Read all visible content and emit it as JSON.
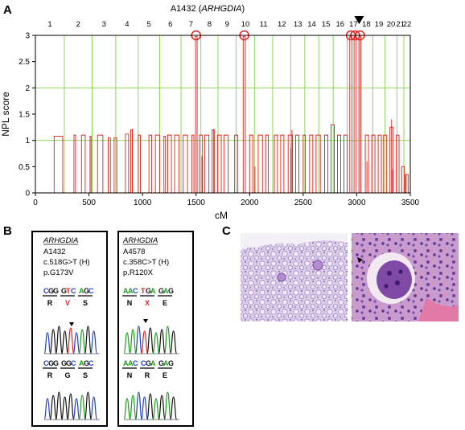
{
  "panels": {
    "a": "A",
    "b": "B",
    "c": "C"
  },
  "chart_data": {
    "type": "line",
    "title": "A1432 (ARHGDIA)",
    "title_plain": "A1432 (",
    "title_gene": "ARHGDIA",
    "title_close": ")",
    "xlabel": "cM",
    "ylabel": "NPL score",
    "xlim": [
      0,
      3500
    ],
    "ylim": [
      0,
      3
    ],
    "xticks": [
      0,
      500,
      1000,
      1500,
      2000,
      2500,
      3000,
      3500
    ],
    "yticks": [
      0,
      0.5,
      1,
      1.5,
      2,
      2.5,
      3
    ],
    "chromosomes": [
      {
        "label": "1",
        "boundary": 0
      },
      {
        "label": "2",
        "boundary": 270
      },
      {
        "label": "3",
        "boundary": 530
      },
      {
        "label": "4",
        "boundary": 750
      },
      {
        "label": "5",
        "boundary": 960
      },
      {
        "label": "6",
        "boundary": 1160
      },
      {
        "label": "7",
        "boundary": 1360
      },
      {
        "label": "8",
        "boundary": 1545
      },
      {
        "label": "9",
        "boundary": 1705
      },
      {
        "label": "10",
        "boundary": 1875
      },
      {
        "label": "11",
        "boundary": 2045
      },
      {
        "label": "12",
        "boundary": 2215
      },
      {
        "label": "13",
        "boundary": 2385
      },
      {
        "label": "14",
        "boundary": 2515
      },
      {
        "label": "15",
        "boundary": 2645
      },
      {
        "label": "16",
        "boundary": 2780
      },
      {
        "label": "17",
        "boundary": 2910
      },
      {
        "label": "18",
        "boundary": 3030
      },
      {
        "label": "19",
        "boundary": 3150
      },
      {
        "label": "20",
        "boundary": 3265
      },
      {
        "label": "21",
        "boundary": 3375
      },
      {
        "label": "22",
        "boundary": 3440
      },
      {
        "label": "",
        "boundary": 3500
      }
    ],
    "threshold_lines": [
      1,
      2
    ],
    "maxima_cM": [
      1500,
      1950,
      2945,
      2985,
      3030
    ],
    "marker_chromosome": "17",
    "npl_segments": [
      {
        "start": 175,
        "end": 255,
        "value": 1.08
      },
      {
        "start": 360,
        "end": 375,
        "value": 1.1
      },
      {
        "start": 430,
        "end": 465,
        "value": 1.1
      },
      {
        "start": 510,
        "end": 520,
        "value": 1.08
      },
      {
        "start": 580,
        "end": 630,
        "value": 1.1
      },
      {
        "start": 680,
        "end": 700,
        "value": 1.05
      },
      {
        "start": 735,
        "end": 760,
        "value": 1.05
      },
      {
        "start": 840,
        "end": 870,
        "value": 1.12
      },
      {
        "start": 890,
        "end": 905,
        "value": 1.2
      },
      {
        "start": 960,
        "end": 980,
        "value": 1.1
      },
      {
        "start": 1060,
        "end": 1085,
        "value": 1.1
      },
      {
        "start": 1120,
        "end": 1160,
        "value": 1.1
      },
      {
        "start": 1200,
        "end": 1215,
        "value": 1.08
      },
      {
        "start": 1235,
        "end": 1270,
        "value": 1.1
      },
      {
        "start": 1300,
        "end": 1340,
        "value": 1.1
      },
      {
        "start": 1380,
        "end": 1420,
        "value": 1.1
      },
      {
        "start": 1460,
        "end": 1480,
        "value": 1.1
      },
      {
        "start": 1495,
        "end": 1510,
        "value": 2.98
      },
      {
        "start": 1530,
        "end": 1560,
        "value": 1.1
      },
      {
        "start": 1580,
        "end": 1620,
        "value": 1.1
      },
      {
        "start": 1650,
        "end": 1670,
        "value": 1.2
      },
      {
        "start": 1700,
        "end": 1735,
        "value": 1.1
      },
      {
        "start": 1760,
        "end": 1800,
        "value": 1.1
      },
      {
        "start": 1860,
        "end": 1890,
        "value": 1.1
      },
      {
        "start": 1940,
        "end": 1960,
        "value": 2.98
      },
      {
        "start": 2000,
        "end": 2030,
        "value": 1.1
      },
      {
        "start": 2080,
        "end": 2120,
        "value": 1.1
      },
      {
        "start": 2150,
        "end": 2175,
        "value": 1.1
      },
      {
        "start": 2230,
        "end": 2260,
        "value": 1.1
      },
      {
        "start": 2290,
        "end": 2320,
        "value": 1.1
      },
      {
        "start": 2360,
        "end": 2400,
        "value": 1.1
      },
      {
        "start": 2430,
        "end": 2460,
        "value": 1.1
      },
      {
        "start": 2500,
        "end": 2520,
        "value": 1.1
      },
      {
        "start": 2560,
        "end": 2590,
        "value": 1.1
      },
      {
        "start": 2620,
        "end": 2660,
        "value": 1.1
      },
      {
        "start": 2700,
        "end": 2730,
        "value": 1.1
      },
      {
        "start": 2760,
        "end": 2790,
        "value": 1.3
      },
      {
        "start": 2820,
        "end": 2850,
        "value": 1.1
      },
      {
        "start": 2880,
        "end": 2910,
        "value": 1.1
      },
      {
        "start": 2935,
        "end": 2955,
        "value": 2.98
      },
      {
        "start": 2975,
        "end": 2995,
        "value": 2.98
      },
      {
        "start": 3020,
        "end": 3040,
        "value": 2.98
      },
      {
        "start": 3080,
        "end": 3110,
        "value": 1.1
      },
      {
        "start": 3140,
        "end": 3170,
        "value": 1.1
      },
      {
        "start": 3200,
        "end": 3230,
        "value": 1.1
      },
      {
        "start": 3250,
        "end": 3280,
        "value": 1.1
      },
      {
        "start": 3310,
        "end": 3340,
        "value": 1.25
      },
      {
        "start": 3370,
        "end": 3395,
        "value": 1.1
      },
      {
        "start": 3420,
        "end": 3445,
        "value": 0.5
      },
      {
        "start": 3460,
        "end": 3480,
        "value": 0.35
      }
    ],
    "npl_spikes": [
      {
        "x": 905,
        "value": 1.22
      },
      {
        "x": 1665,
        "value": 1.22
      },
      {
        "x": 2385,
        "value": 0.85
      },
      {
        "x": 2395,
        "value": 1.2
      },
      {
        "x": 2790,
        "value": 1.3
      },
      {
        "x": 3095,
        "value": 0.6
      },
      {
        "x": 3325,
        "value": 1.4
      },
      {
        "x": 3335,
        "value": 0.45
      },
      {
        "x": 3455,
        "value": 0.35
      },
      {
        "x": 2050,
        "value": 0.5
      },
      {
        "x": 1555,
        "value": 0.7
      }
    ]
  },
  "panel_b": {
    "boxes": [
      {
        "gene": "ARHGDIA",
        "id": "A1432",
        "mutation": "c.518G>T (H)",
        "protein": "p.G173V",
        "mutant": {
          "codons": [
            "CGG",
            "GTC",
            "AGC"
          ],
          "aa": [
            "R",
            "V",
            "S"
          ],
          "mut_index": 1
        },
        "normal": {
          "codons": [
            "CGG",
            "GGC",
            "AGC"
          ],
          "aa": [
            "R",
            "G",
            "S"
          ]
        }
      },
      {
        "gene": "ARHGDIA",
        "id": "A4578",
        "mutation": "c.358C>T (H)",
        "protein": "p.R120X",
        "mutant": {
          "codons": [
            "AAC",
            "TGA",
            "GAG"
          ],
          "aa": [
            "N",
            "X",
            "E"
          ],
          "mut_index": 1
        },
        "normal": {
          "codons": [
            "AAC",
            "CGA",
            "GAG"
          ],
          "aa": [
            "N",
            "R",
            "E"
          ]
        }
      }
    ],
    "base_colors": {
      "A": "#1a9e1a",
      "C": "#1f3fd8",
      "G": "#111111",
      "T": "#e0201a"
    },
    "mutation_color": "#e0201a"
  },
  "panel_c": {
    "images": [
      "kidney-histology-low",
      "glomerulus-histology-high"
    ]
  },
  "colors": {
    "grid": "#7fd44a",
    "npl": "#e0201a",
    "axis": "#000000"
  }
}
